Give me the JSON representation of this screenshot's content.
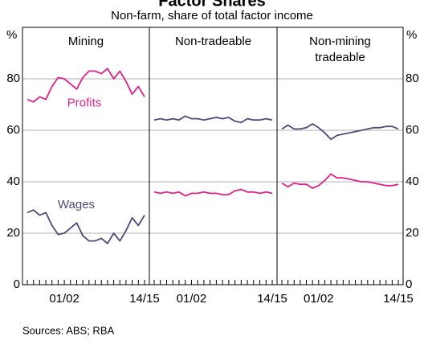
{
  "title": "Factor Shares",
  "subtitle": "Non-farm, share of total factor income",
  "source": "Sources: ABS; RBA",
  "chart_data": [
    {
      "type": "line",
      "title": [
        "Mining"
      ],
      "ylabel": "%",
      "categories": [
        null,
        null,
        null,
        null,
        null,
        null,
        "01/02",
        null,
        null,
        null,
        null,
        null,
        null,
        null,
        null,
        null,
        null,
        null,
        null,
        "14/15"
      ],
      "ylim": [
        0,
        100
      ],
      "yticks": [
        0,
        20,
        40,
        60,
        80
      ],
      "series": [
        {
          "name": "Profits",
          "color": "#e0218a",
          "values": [
            72,
            71,
            73,
            72,
            77,
            80.5,
            80,
            78,
            76,
            80.5,
            83,
            83,
            82,
            84,
            80,
            83,
            79,
            74,
            77,
            73
          ]
        },
        {
          "name": "Wages",
          "color": "#4f4a7a",
          "values": [
            28,
            29,
            27,
            28,
            23,
            19.5,
            20,
            22,
            24,
            19,
            17,
            17,
            18,
            16,
            20,
            17,
            21,
            26,
            23,
            27
          ]
        }
      ]
    },
    {
      "type": "line",
      "title": [
        "Non-tradeable"
      ],
      "categories": [
        null,
        null,
        null,
        null,
        null,
        null,
        "01/02",
        null,
        null,
        null,
        null,
        null,
        null,
        null,
        null,
        null,
        null,
        null,
        null,
        "14/15"
      ],
      "ylim": [
        0,
        100
      ],
      "yticks": [
        0,
        20,
        40,
        60,
        80
      ],
      "series": [
        {
          "color": "#e0218a",
          "values": [
            36,
            35.5,
            36,
            35.5,
            36,
            34.5,
            35.5,
            35.5,
            36,
            35.5,
            35.5,
            35,
            35,
            36.5,
            37,
            36,
            36,
            35.5,
            36,
            35.5
          ]
        },
        {
          "color": "#4f4a7a",
          "values": [
            64,
            64.5,
            64,
            64.5,
            64,
            65.5,
            64.5,
            64.5,
            64,
            64.5,
            65,
            64.5,
            65,
            63.5,
            63,
            64.5,
            64,
            64,
            64.5,
            64
          ]
        }
      ]
    },
    {
      "type": "line",
      "title": [
        "Non-mining",
        "tradeable"
      ],
      "ylabel": "%",
      "categories": [
        null,
        null,
        null,
        null,
        null,
        null,
        "01/02",
        null,
        null,
        null,
        null,
        null,
        null,
        null,
        null,
        null,
        null,
        null,
        null,
        "14/15"
      ],
      "ylim": [
        0,
        100
      ],
      "yticks": [
        0,
        20,
        40,
        60,
        80
      ],
      "series": [
        {
          "color": "#e0218a",
          "values": [
            39.5,
            38,
            39.5,
            39,
            39,
            37.5,
            38.5,
            40.5,
            43,
            41.5,
            41.5,
            41,
            40.5,
            40,
            40,
            39.5,
            39,
            38.5,
            38.5,
            39
          ]
        },
        {
          "color": "#4f4a7a",
          "values": [
            60.5,
            62,
            60.5,
            60.5,
            61,
            62.5,
            61,
            59,
            56.5,
            58,
            58.5,
            59,
            59.5,
            60,
            60.5,
            61,
            61,
            61.5,
            61.5,
            60.5
          ]
        }
      ]
    }
  ]
}
